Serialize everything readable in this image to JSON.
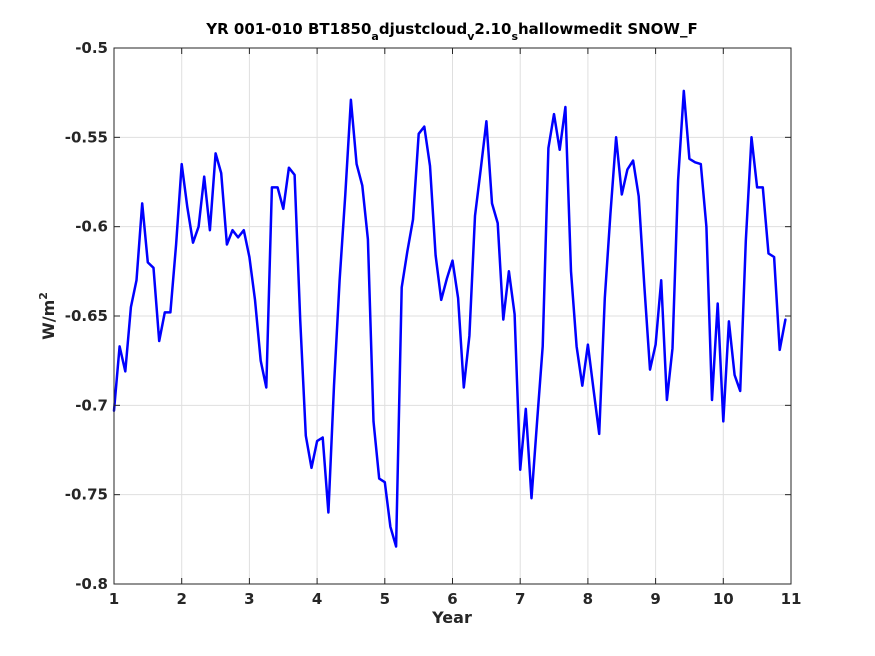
{
  "chart_data": {
    "type": "line",
    "title": {
      "p1": "YR 001-010 BT1850",
      "s1": "a",
      "p2": "djustcloud",
      "s2": "v",
      "p3": "2.10",
      "s3": "s",
      "p4": "hallowmedit SNOW_F"
    },
    "xlabel": "Year",
    "ylabel": {
      "base": "W/m",
      "sup": "2"
    },
    "xlim": [
      1,
      11
    ],
    "ylim": [
      -0.8,
      -0.5
    ],
    "xticks": [
      "1",
      "2",
      "3",
      "4",
      "5",
      "6",
      "7",
      "8",
      "9",
      "10",
      "11"
    ],
    "yticks": [
      "-0.5",
      "-0.55",
      "-0.6",
      "-0.65",
      "-0.7",
      "-0.75",
      "-0.8"
    ],
    "grid": true,
    "line_color": "#0000ff",
    "series": [
      {
        "x": [
          1.0,
          1.083,
          1.167,
          1.25,
          1.333,
          1.417,
          1.5,
          1.583,
          1.667,
          1.75,
          1.833,
          1.917,
          2.0,
          2.083,
          2.167,
          2.25,
          2.333,
          2.417,
          2.5,
          2.583,
          2.667,
          2.75,
          2.833,
          2.917,
          3.0,
          3.083,
          3.167,
          3.25,
          3.333,
          3.417,
          3.5,
          3.583,
          3.667,
          3.75,
          3.833,
          3.917,
          4.0,
          4.083,
          4.167,
          4.25,
          4.333,
          4.417,
          4.5,
          4.583,
          4.667,
          4.75,
          4.833,
          4.917,
          5.0,
          5.083,
          5.167,
          5.25,
          5.333,
          5.417,
          5.5,
          5.583,
          5.667,
          5.75,
          5.833,
          5.917,
          6.0,
          6.083,
          6.167,
          6.25,
          6.333,
          6.417,
          6.5,
          6.583,
          6.667,
          6.75,
          6.833,
          6.917,
          7.0,
          7.083,
          7.167,
          7.25,
          7.333,
          7.417,
          7.5,
          7.583,
          7.667,
          7.75,
          7.833,
          7.917,
          8.0,
          8.083,
          8.167,
          8.25,
          8.333,
          8.417,
          8.5,
          8.583,
          8.667,
          8.75,
          8.833,
          8.917,
          9.0,
          9.083,
          9.167,
          9.25,
          9.333,
          9.417,
          9.5,
          9.583,
          9.667,
          9.75,
          9.833,
          9.917,
          10.0,
          10.083,
          10.167,
          10.25,
          10.333,
          10.417,
          10.5,
          10.583,
          10.667,
          10.75,
          10.833,
          10.917
        ],
        "y": [
          -0.703,
          -0.667,
          -0.681,
          -0.645,
          -0.63,
          -0.587,
          -0.62,
          -0.623,
          -0.664,
          -0.648,
          -0.648,
          -0.61,
          -0.565,
          -0.589,
          -0.609,
          -0.6,
          -0.572,
          -0.602,
          -0.559,
          -0.57,
          -0.61,
          -0.602,
          -0.606,
          -0.602,
          -0.617,
          -0.641,
          -0.675,
          -0.69,
          -0.578,
          -0.578,
          -0.59,
          -0.567,
          -0.571,
          -0.652,
          -0.717,
          -0.735,
          -0.72,
          -0.718,
          -0.76,
          -0.689,
          -0.63,
          -0.582,
          -0.529,
          -0.565,
          -0.577,
          -0.607,
          -0.709,
          -0.741,
          -0.743,
          -0.768,
          -0.779,
          -0.634,
          -0.614,
          -0.596,
          -0.548,
          -0.544,
          -0.566,
          -0.616,
          -0.641,
          -0.629,
          -0.619,
          -0.64,
          -0.69,
          -0.661,
          -0.594,
          -0.568,
          -0.541,
          -0.587,
          -0.598,
          -0.652,
          -0.625,
          -0.649,
          -0.736,
          -0.702,
          -0.752,
          -0.709,
          -0.667,
          -0.556,
          -0.537,
          -0.557,
          -0.533,
          -0.625,
          -0.667,
          -0.689,
          -0.666,
          -0.691,
          -0.716,
          -0.64,
          -0.593,
          -0.55,
          -0.582,
          -0.568,
          -0.563,
          -0.583,
          -0.633,
          -0.68,
          -0.666,
          -0.63,
          -0.697,
          -0.668,
          -0.574,
          -0.524,
          -0.562,
          -0.564,
          -0.565,
          -0.6,
          -0.697,
          -0.643,
          -0.709,
          -0.653,
          -0.683,
          -0.692,
          -0.608,
          -0.55,
          -0.578,
          -0.578,
          -0.615,
          -0.617,
          -0.669,
          -0.652
        ]
      }
    ]
  }
}
